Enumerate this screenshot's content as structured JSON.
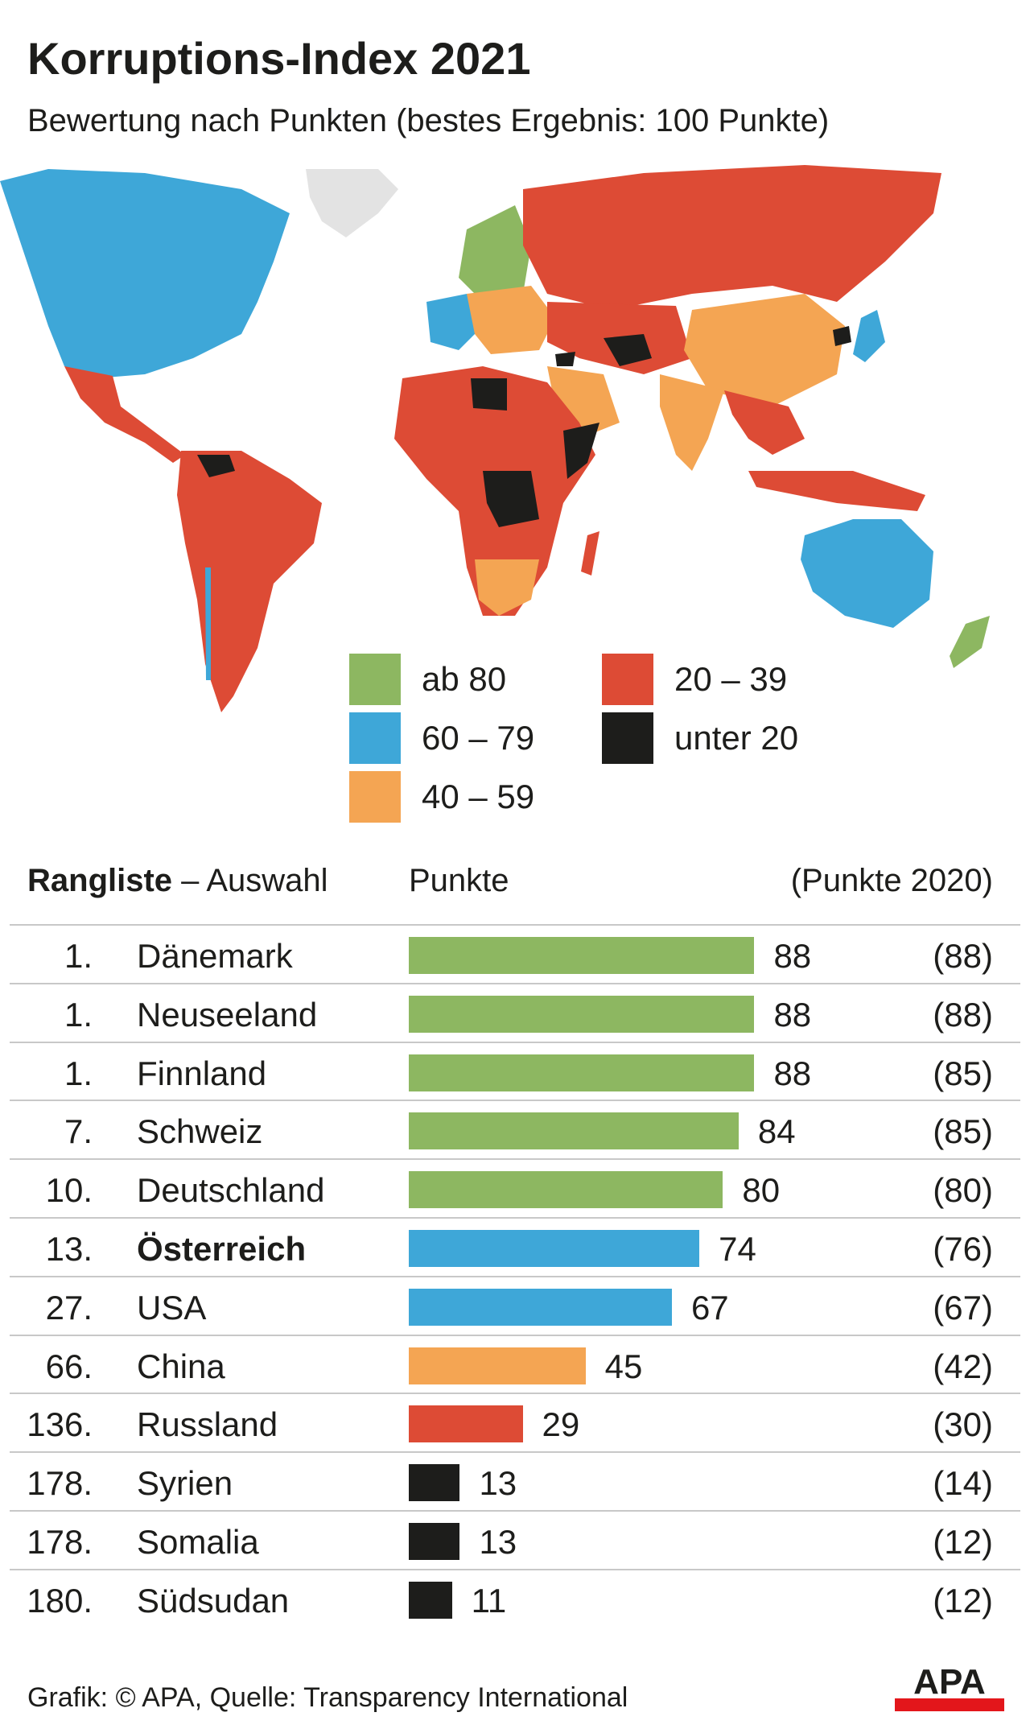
{
  "header": {
    "title": "Korruptions-Index 2021",
    "subtitle": "Bewertung nach Punkten (bestes Ergebnis: 100 Punkte)"
  },
  "colors": {
    "ab80": "#8db761",
    "60_79": "#3ea7d8",
    "40_59": "#f4a553",
    "20_39": "#dd4b35",
    "unter20": "#1d1d1b",
    "no_data": "#e3e3e3",
    "apa_red": "#e3161b"
  },
  "legend": [
    {
      "label": "ab 80",
      "color": "#8db761"
    },
    {
      "label": "60 – 79",
      "color": "#3ea7d8"
    },
    {
      "label": "40 – 59",
      "color": "#f4a553"
    },
    {
      "label": "20 – 39",
      "color": "#dd4b35"
    },
    {
      "label": "unter 20",
      "color": "#1d1d1b"
    }
  ],
  "table": {
    "header_bold": "Rangliste",
    "header_rest": " – Auswahl",
    "header_points": "Punkte",
    "header_prev": "(Punkte 2020)"
  },
  "chart_data": {
    "type": "bar",
    "orientation": "horizontal",
    "categories": [
      "Dänemark",
      "Neuseeland",
      "Finnland",
      "Schweiz",
      "Deutschland",
      "Österreich",
      "USA",
      "China",
      "Russland",
      "Syrien",
      "Somalia",
      "Südsudan"
    ],
    "ranks": [
      "1.",
      "1.",
      "1.",
      "7.",
      "10.",
      "13.",
      "27.",
      "66.",
      "136.",
      "178.",
      "178.",
      "180."
    ],
    "values": [
      88,
      88,
      88,
      84,
      80,
      74,
      67,
      45,
      29,
      13,
      13,
      11
    ],
    "prev_labels": [
      "(88)",
      "(88)",
      "(85)",
      "(85)",
      "(80)",
      "(76)",
      "(67)",
      "(42)",
      "(30)",
      "(14)",
      "(12)",
      "(12)"
    ],
    "values_2020": [
      88,
      88,
      85,
      85,
      80,
      76,
      67,
      42,
      30,
      14,
      12,
      12
    ],
    "highlight": "Österreich",
    "xlim": [
      0,
      100
    ]
  },
  "footer": {
    "credit": "Grafik: © APA, Quelle: Transparency International",
    "logo": "APA"
  }
}
